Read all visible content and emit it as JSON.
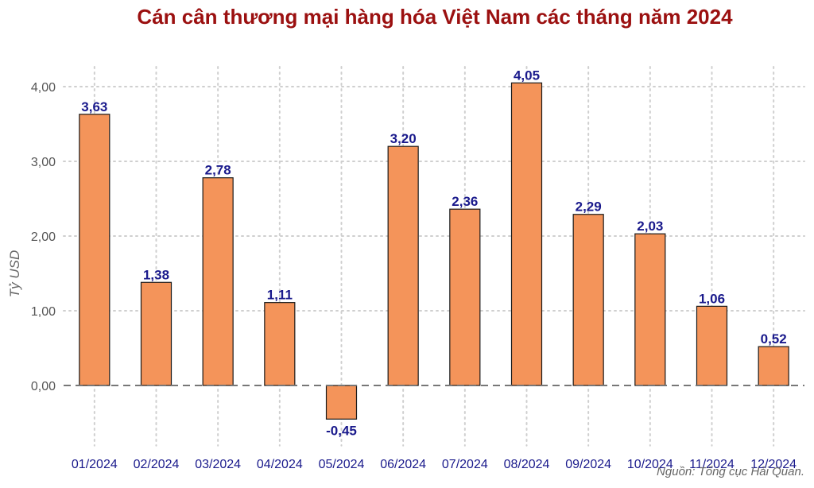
{
  "chart_data": {
    "type": "bar",
    "title": "Cán cân thương mại hàng hóa Việt Nam các tháng năm 2024",
    "xlabel": "",
    "ylabel": "Tỷ USD",
    "categories": [
      "01/2024",
      "02/2024",
      "03/2024",
      "04/2024",
      "05/2024",
      "06/2024",
      "07/2024",
      "08/2024",
      "09/2024",
      "10/2024",
      "11/2024",
      "12/2024"
    ],
    "values": [
      3.63,
      1.38,
      2.78,
      1.11,
      -0.45,
      3.2,
      2.36,
      4.05,
      2.29,
      2.03,
      1.06,
      0.52
    ],
    "value_labels": [
      "3,63",
      "1,38",
      "2,78",
      "1,11",
      "-0,45",
      "3,20",
      "2,36",
      "4,05",
      "2,29",
      "2,03",
      "1,06",
      "0,52"
    ],
    "yticks": [
      0,
      1,
      2,
      3,
      4
    ],
    "ytick_labels": [
      "0,00",
      "1,00",
      "2,00",
      "3,00",
      "4,00"
    ],
    "ylim": [
      -0.7,
      4.2
    ],
    "grid": true,
    "zero_line": "dashed",
    "source": "Nguồn: Tổng cục Hải Quan."
  },
  "colors": {
    "title": "#9b1010",
    "bar_fill": "#f4945a",
    "bar_stroke": "#1a1a1a",
    "data_label": "#1a1a8c",
    "x_tick": "#1a1a8c",
    "y_tick": "#555555",
    "y_label": "#666666",
    "grid": "#cfcfcf",
    "zero_line": "#777777",
    "source": "#666666"
  }
}
